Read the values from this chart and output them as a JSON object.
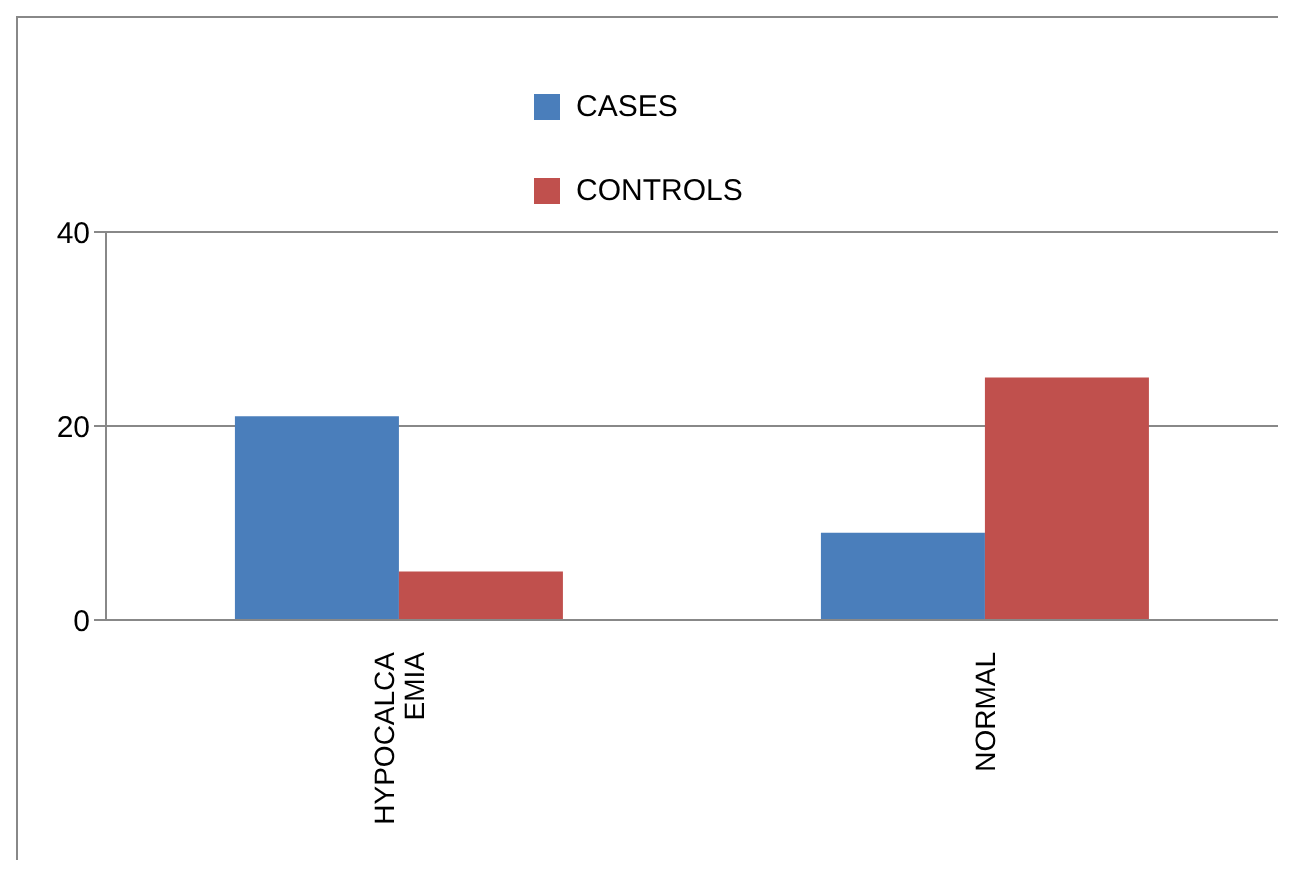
{
  "chart_data": {
    "type": "bar",
    "categories": [
      "HYPOCALCAEMIA",
      "NORMAL"
    ],
    "series": [
      {
        "name": "CASES",
        "color": "#4a7ebb",
        "values": [
          21,
          9
        ]
      },
      {
        "name": "CONTROLS",
        "color": "#c0504d",
        "values": [
          5,
          25
        ]
      }
    ],
    "ylim": [
      0,
      40
    ],
    "yticks": [
      0,
      20,
      40
    ],
    "grid": "y",
    "legend": "top"
  }
}
